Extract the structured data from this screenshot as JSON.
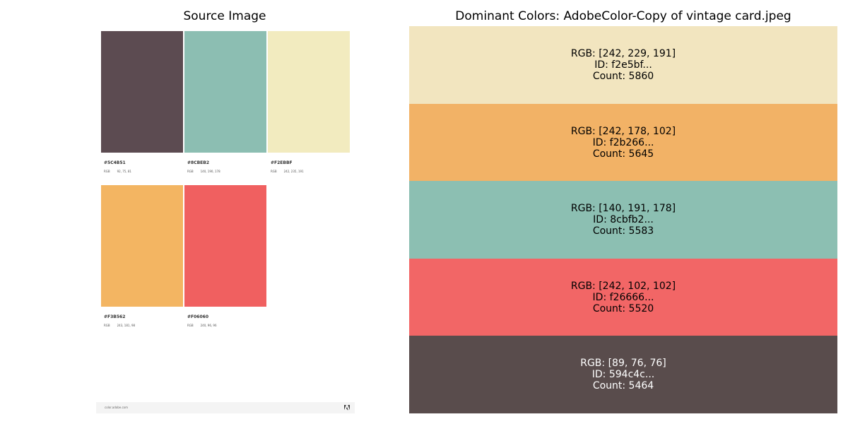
{
  "titles": {
    "left": "Source Image",
    "right": "Dominant Colors: AdobeColor-Copy of vintage card.jpeg"
  },
  "source": {
    "swatches": [
      {
        "hex": "#5C4B51",
        "color": "#5c4b51",
        "rgb_key": "RGB",
        "rgb_value": "92, 75, 81"
      },
      {
        "hex": "#8CBEB2",
        "color": "#8cbeb2",
        "rgb_key": "RGB",
        "rgb_value": "140, 190, 178"
      },
      {
        "hex": "#F2EBBF",
        "color": "#f2ebbf",
        "rgb_key": "RGB",
        "rgb_value": "242, 235, 191"
      },
      {
        "hex": "#F3B562",
        "color": "#f3b562",
        "rgb_key": "RGB",
        "rgb_value": "243, 181, 98"
      },
      {
        "hex": "#F06060",
        "color": "#f06060",
        "rgb_key": "RGB",
        "rgb_value": "240, 96, 96"
      }
    ],
    "footer_url": "color.adobe.com"
  },
  "dominant": [
    {
      "rgb": "RGB: [242, 229, 191]",
      "id": "ID: f2e5bf...",
      "count": "Count: 5860",
      "color": "#f2e5bf",
      "text_color": "#000000"
    },
    {
      "rgb": "RGB: [242, 178, 102]",
      "id": "ID: f2b266...",
      "count": "Count: 5645",
      "color": "#f2b266",
      "text_color": "#000000"
    },
    {
      "rgb": "RGB: [140, 191, 178]",
      "id": "ID: 8cbfb2...",
      "count": "Count: 5583",
      "color": "#8cbfb2",
      "text_color": "#000000"
    },
    {
      "rgb": "RGB: [242, 102, 102]",
      "id": "ID: f26666...",
      "count": "Count: 5520",
      "color": "#f26666",
      "text_color": "#000000"
    },
    {
      "rgb": "RGB: [89, 76, 76]",
      "id": "ID: 594c4c...",
      "count": "Count: 5464",
      "color": "#594c4c",
      "text_color": "#ffffff"
    }
  ]
}
